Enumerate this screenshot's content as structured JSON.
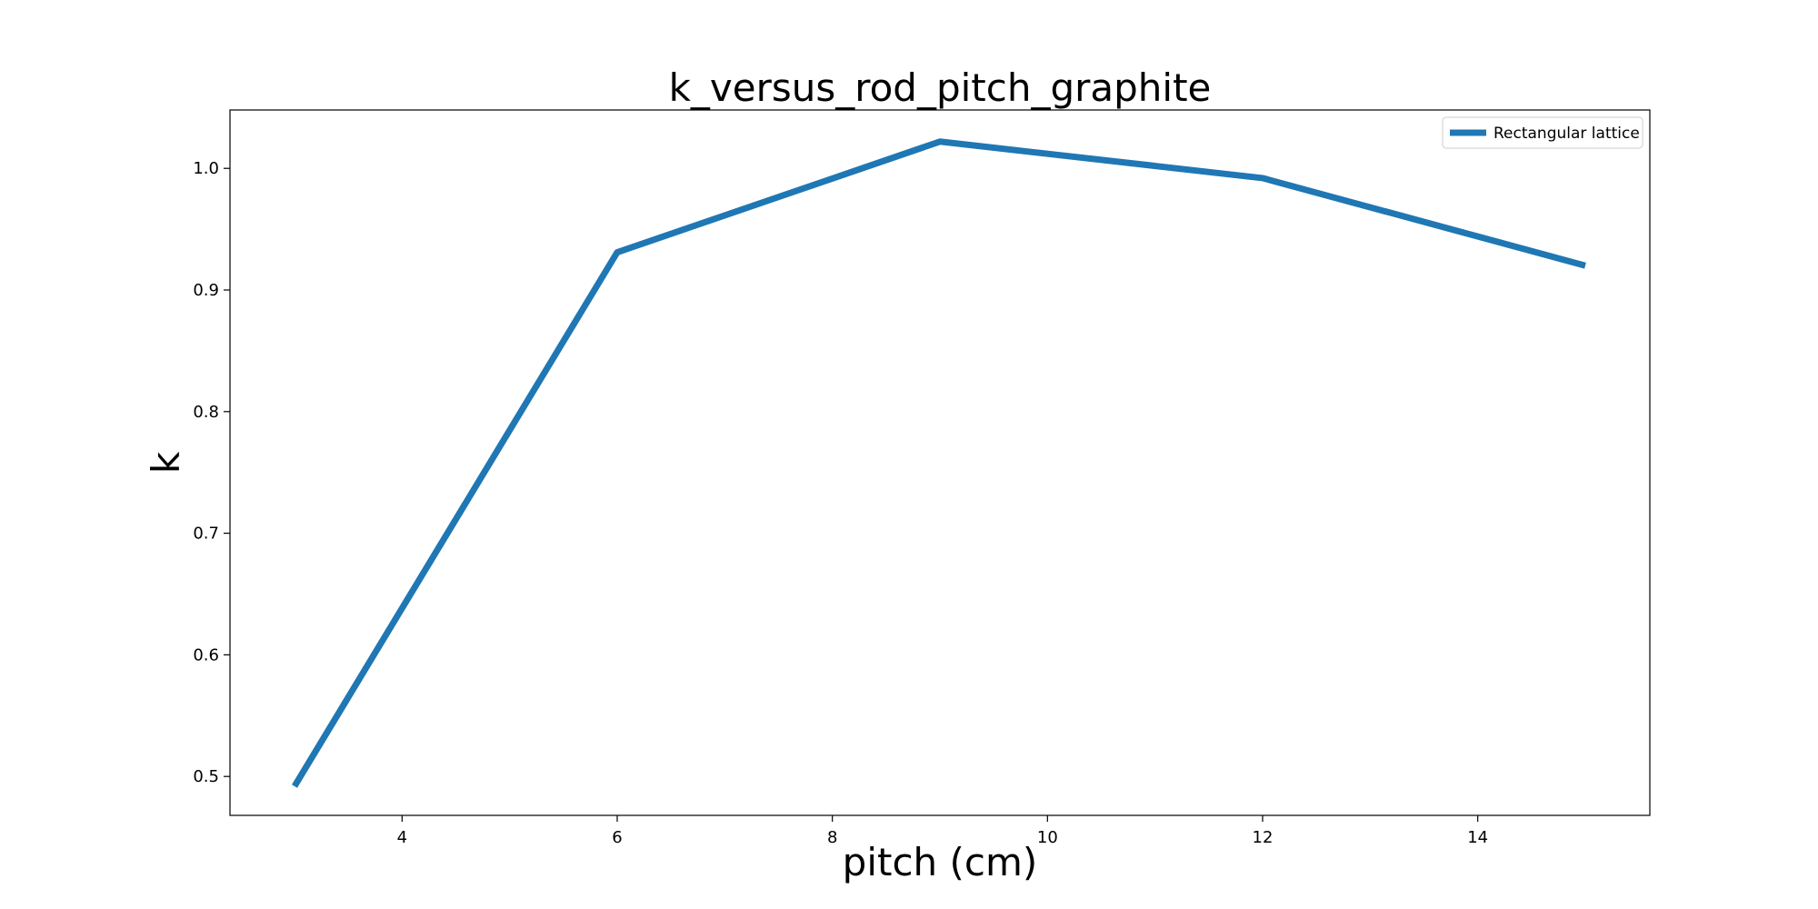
{
  "chart_data": {
    "type": "line",
    "title": "k_versus_rod_pitch_graphite",
    "xlabel": "pitch (cm)",
    "ylabel": "k",
    "xlim": [
      2.4,
      15.6
    ],
    "ylim": [
      0.468,
      1.048
    ],
    "xticks": [
      4,
      6,
      8,
      10,
      12,
      14
    ],
    "xtick_labels": [
      "4",
      "6",
      "8",
      "10",
      "12",
      "14"
    ],
    "yticks": [
      0.5,
      0.6,
      0.7,
      0.8,
      0.9,
      1.0
    ],
    "ytick_labels": [
      "0.5",
      "0.6",
      "0.7",
      "0.8",
      "0.9",
      "1.0"
    ],
    "grid": false,
    "legend_position": "top-right",
    "series": [
      {
        "name": "Rectangular lattice",
        "color": "#1f77b4",
        "x": [
          3,
          6,
          9,
          12,
          15
        ],
        "y": [
          0.492,
          0.931,
          1.022,
          0.992,
          0.92
        ]
      }
    ]
  }
}
